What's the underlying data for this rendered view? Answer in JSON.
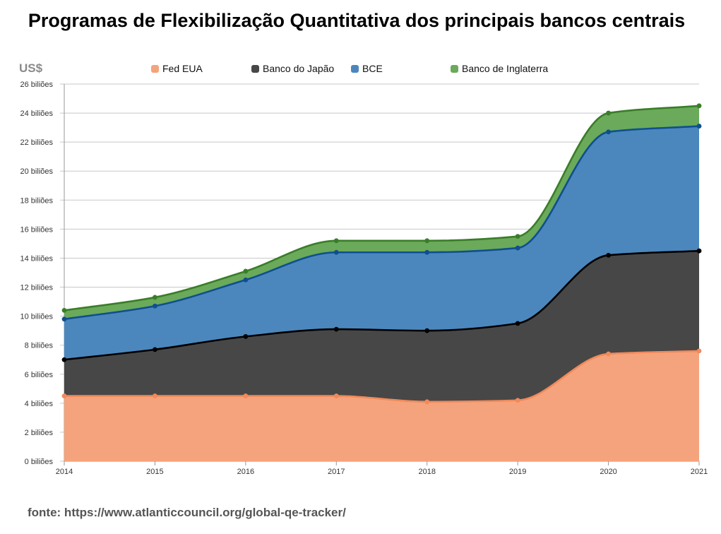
{
  "title": "Programas de Flexibilização Quantitativa dos principais bancos centrais",
  "unit_label": "US$",
  "source": "fonte: https://www.atlanticcouncil.org/global-qe-tracker/",
  "chart_data": {
    "type": "area",
    "stacked": true,
    "title": "Programas de Flexibilização Quantitativa dos principais bancos centrais",
    "ylabel": "US$",
    "x": [
      2014,
      2015,
      2016,
      2017,
      2018,
      2019,
      2020,
      2021
    ],
    "ylim": [
      0,
      26
    ],
    "y_tick_values": [
      0,
      2,
      4,
      6,
      8,
      10,
      12,
      14,
      16,
      18,
      20,
      22,
      24,
      26
    ],
    "y_tick_labels": [
      "0 biliões",
      "2 biliões",
      "4 biliões",
      "6 biliões",
      "8 biliões",
      "10 biliões",
      "12 biliões",
      "14 biliões",
      "16 biliões",
      "18 biliões",
      "20 biliões",
      "22 biliões",
      "24 biliões",
      "26 biliões"
    ],
    "x_tick_labels": [
      "2014",
      "2015",
      "2016",
      "2017",
      "2018",
      "2019",
      "2020",
      "2021"
    ],
    "grid": true,
    "legend_position": "top",
    "series": [
      {
        "name": "Fed EUA",
        "color": "#f08a5b",
        "fill": "#f5a37c",
        "values": [
          4.5,
          4.5,
          4.5,
          4.5,
          4.1,
          4.2,
          7.4,
          7.6
        ]
      },
      {
        "name": "Banco do Japão",
        "color": "#000000",
        "fill": "#474747",
        "values": [
          2.5,
          3.2,
          4.1,
          4.6,
          4.9,
          5.3,
          6.8,
          6.9
        ]
      },
      {
        "name": "BCE",
        "color": "#0f4f8f",
        "fill": "#4b87bd",
        "values": [
          2.8,
          3.0,
          3.9,
          5.3,
          5.4,
          5.2,
          8.5,
          8.6
        ]
      },
      {
        "name": "Banco de Inglaterra",
        "color": "#3a7d29",
        "fill": "#6aaa5a",
        "values": [
          0.6,
          0.6,
          0.6,
          0.8,
          0.8,
          0.8,
          1.3,
          1.4
        ]
      }
    ]
  }
}
